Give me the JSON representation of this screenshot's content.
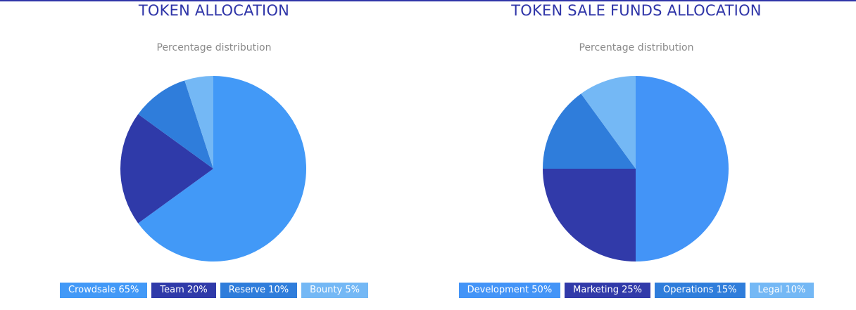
{
  "chart_data": [
    {
      "type": "pie",
      "title": "TOKEN ALLOCATION",
      "subtitle": "Percentage distribution",
      "categories": [
        "Crowdsale",
        "Team",
        "Reserve",
        "Bounty"
      ],
      "values": [
        65,
        20,
        10,
        5
      ],
      "colors": [
        "#4299f7",
        "#2f3aa9",
        "#2f7ddb",
        "#74b8f5"
      ],
      "legend": [
        "Crowdsale 65%",
        "Team 20%",
        "Reserve 10%",
        "Bounty 5%"
      ]
    },
    {
      "type": "pie",
      "title": "TOKEN SALE FUNDS ALLOCATION",
      "subtitle": "Percentage distribution",
      "categories": [
        "Development",
        "Marketing",
        "Operations",
        "Legal"
      ],
      "values": [
        50,
        25,
        15,
        10
      ],
      "colors": [
        "#4394f7",
        "#313aa9",
        "#2f7ddb",
        "#74b8f5"
      ],
      "legend": [
        "Development 50%",
        "Marketing 25%",
        "Operations 15%",
        "Legal 10%"
      ]
    }
  ]
}
